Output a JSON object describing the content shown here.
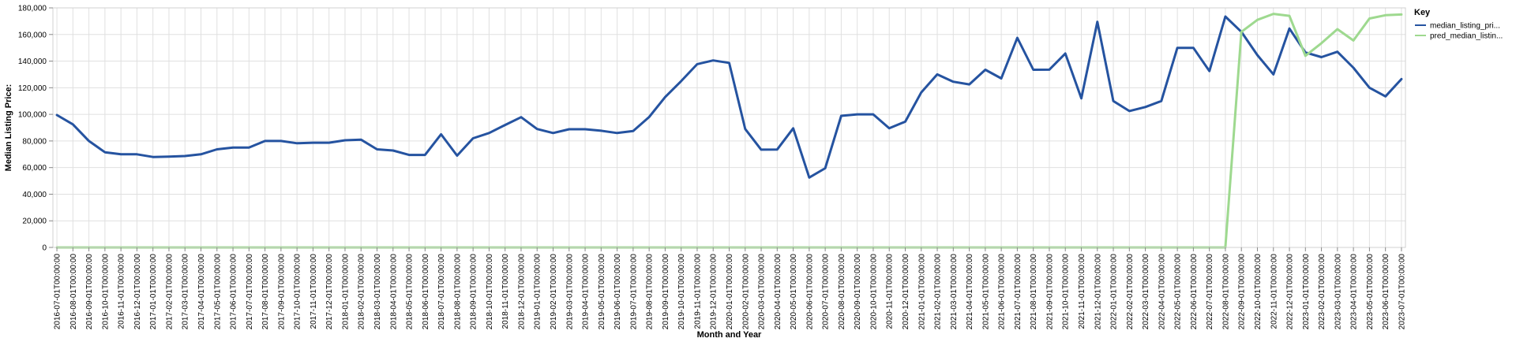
{
  "chart_data": {
    "type": "line",
    "xlabel": "Month and Year",
    "ylabel": "Median Listing Price:",
    "ylim": [
      0,
      180000
    ],
    "yticks": [
      "0",
      "20,000",
      "40,000",
      "60,000",
      "80,000",
      "100,000",
      "120,000",
      "140,000",
      "160,000",
      "180,000"
    ],
    "grid": true,
    "legend": {
      "title": "Key",
      "placement": "top-right"
    },
    "x": [
      "2016-07-01T00:00:00",
      "2016-08-01T00:00:00",
      "2016-09-01T00:00:00",
      "2016-10-01T00:00:00",
      "2016-11-01T00:00:00",
      "2016-12-01T00:00:00",
      "2017-01-01T00:00:00",
      "2017-02-01T00:00:00",
      "2017-03-01T00:00:00",
      "2017-04-01T00:00:00",
      "2017-05-01T00:00:00",
      "2017-06-01T00:00:00",
      "2017-07-01T00:00:00",
      "2017-08-01T00:00:00",
      "2017-09-01T00:00:00",
      "2017-10-01T00:00:00",
      "2017-11-01T00:00:00",
      "2017-12-01T00:00:00",
      "2018-01-01T00:00:00",
      "2018-02-01T00:00:00",
      "2018-03-01T00:00:00",
      "2018-04-01T00:00:00",
      "2018-05-01T00:00:00",
      "2018-06-01T00:00:00",
      "2018-07-01T00:00:00",
      "2018-08-01T00:00:00",
      "2018-09-01T00:00:00",
      "2018-10-01T00:00:00",
      "2018-11-01T00:00:00",
      "2018-12-01T00:00:00",
      "2019-01-01T00:00:00",
      "2019-02-01T00:00:00",
      "2019-03-01T00:00:00",
      "2019-04-01T00:00:00",
      "2019-05-01T00:00:00",
      "2019-06-01T00:00:00",
      "2019-07-01T00:00:00",
      "2019-08-01T00:00:00",
      "2019-09-01T00:00:00",
      "2019-10-01T00:00:00",
      "2019-11-01T00:00:00",
      "2019-12-01T00:00:00",
      "2020-01-01T00:00:00",
      "2020-02-01T00:00:00",
      "2020-03-01T00:00:00",
      "2020-04-01T00:00:00",
      "2020-05-01T00:00:00",
      "2020-06-01T00:00:00",
      "2020-07-01T00:00:00",
      "2020-08-01T00:00:00",
      "2020-09-01T00:00:00",
      "2020-10-01T00:00:00",
      "2020-11-01T00:00:00",
      "2020-12-01T00:00:00",
      "2021-01-01T00:00:00",
      "2021-02-01T00:00:00",
      "2021-03-01T00:00:00",
      "2021-04-01T00:00:00",
      "2021-05-01T00:00:00",
      "2021-06-01T00:00:00",
      "2021-07-01T00:00:00",
      "2021-08-01T00:00:00",
      "2021-09-01T00:00:00",
      "2021-10-01T00:00:00",
      "2021-11-01T00:00:00",
      "2021-12-01T00:00:00",
      "2022-01-01T00:00:00",
      "2022-02-01T00:00:00",
      "2022-03-01T00:00:00",
      "2022-04-01T00:00:00",
      "2022-05-01T00:00:00",
      "2022-06-01T00:00:00",
      "2022-07-01T00:00:00",
      "2022-08-01T00:00:00",
      "2022-09-01T00:00:00",
      "2022-10-01T00:00:00",
      "2022-11-01T00:00:00",
      "2022-12-01T00:00:00",
      "2023-01-01T00:00:00",
      "2023-02-01T00:00:00",
      "2023-03-01T00:00:00",
      "2023-04-01T00:00:00",
      "2023-05-01T00:00:00",
      "2023-06-01T00:00:00",
      "2023-07-01T00:00:00"
    ],
    "series": [
      {
        "name": "median_listing_pri...",
        "color": "#2553a0",
        "values": [
          99500,
          92500,
          80000,
          71500,
          70000,
          70000,
          68000,
          68200,
          68700,
          70000,
          73700,
          75000,
          75000,
          80000,
          80000,
          78300,
          78700,
          78700,
          80500,
          81000,
          73700,
          72800,
          69500,
          69500,
          85000,
          69000,
          82000,
          86000,
          92000,
          97900,
          89000,
          86000,
          88800,
          88800,
          87700,
          86000,
          87500,
          98000,
          113000,
          125000,
          137700,
          140500,
          138700,
          89000,
          73500,
          73600,
          89500,
          52500,
          59500,
          98900,
          100000,
          100000,
          89500,
          94500,
          116500,
          130000,
          124500,
          122500,
          133500,
          127000,
          157500,
          133500,
          133600,
          145700,
          112000,
          169500,
          110000,
          102500,
          105500,
          110000,
          150000,
          150000,
          132500,
          173500,
          162000,
          144500,
          130000,
          164500,
          146500,
          143000,
          147000,
          135000,
          120000,
          113500,
          126500
        ]
      },
      {
        "name": "pred_median_listin...",
        "color": "#9ed98f",
        "values": [
          0,
          0,
          0,
          0,
          0,
          0,
          0,
          0,
          0,
          0,
          0,
          0,
          0,
          0,
          0,
          0,
          0,
          0,
          0,
          0,
          0,
          0,
          0,
          0,
          0,
          0,
          0,
          0,
          0,
          0,
          0,
          0,
          0,
          0,
          0,
          0,
          0,
          0,
          0,
          0,
          0,
          0,
          0,
          0,
          0,
          0,
          0,
          0,
          0,
          0,
          0,
          0,
          0,
          0,
          0,
          0,
          0,
          0,
          0,
          0,
          0,
          0,
          0,
          0,
          0,
          0,
          0,
          0,
          0,
          0,
          0,
          0,
          0,
          0,
          162000,
          171000,
          175500,
          174000,
          144000,
          153500,
          164000,
          155500,
          172000,
          174500,
          175000
        ]
      }
    ]
  }
}
